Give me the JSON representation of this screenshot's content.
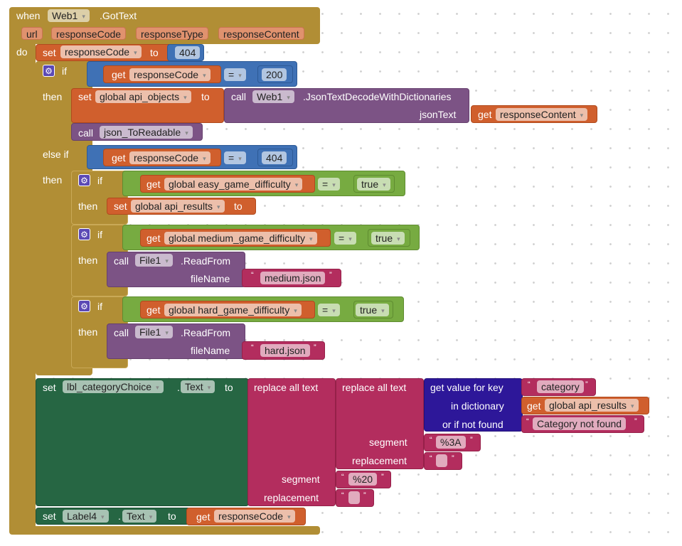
{
  "event": {
    "when": "when",
    "component": "Web1",
    "event_name": ".GotText",
    "params": [
      "url",
      "responseCode",
      "responseType",
      "responseContent"
    ],
    "do": "do"
  },
  "set1": {
    "set": "set",
    "var": "responseCode",
    "to": "to",
    "value": "404"
  },
  "if_outer": {
    "if": "if",
    "then": "then",
    "else_if": "else if",
    "then2": "then"
  },
  "cmp1": {
    "get": "get",
    "var": "responseCode",
    "op": "=",
    "value": "200"
  },
  "set_objects": {
    "set": "set",
    "var": "global api_objects",
    "to": "to"
  },
  "call_decode": {
    "call": "call",
    "component": "Web1",
    "method": ".JsonTextDecodeWithDictionaries",
    "arg": "jsonText",
    "get": "get",
    "get_var": "responseContent"
  },
  "call_proc": {
    "call": "call",
    "name": "json_ToReadable"
  },
  "cmp2": {
    "get": "get",
    "var": "responseCode",
    "op": "=",
    "value": "404"
  },
  "if1": {
    "if": "if",
    "then": "then",
    "get": "get",
    "var": "global easy_game_difficulty",
    "op": "=",
    "value": "true",
    "set": "set",
    "set_var": "global api_results",
    "to": "to"
  },
  "if2": {
    "if": "if",
    "then": "then",
    "get": "get",
    "var": "global medium_game_difficulty",
    "op": "=",
    "value": "true",
    "call": "call",
    "component": "File1",
    "method": ".ReadFrom",
    "arg": "fileName",
    "file": "medium.json"
  },
  "if3": {
    "if": "if",
    "then": "then",
    "get": "get",
    "var": "global hard_game_difficulty",
    "op": "=",
    "value": "true",
    "call": "call",
    "component": "File1",
    "method": ".ReadFrom",
    "arg": "fileName",
    "file": "hard.json"
  },
  "set_lbl": {
    "set": "set",
    "component": "lbl_categoryChoice",
    "dot": ".",
    "prop": "Text",
    "to": "to"
  },
  "replace_outer": {
    "label": "replace all text",
    "segment": "segment",
    "replacement": "replacement",
    "segment_value": "%20",
    "replacement_value": ""
  },
  "replace_inner": {
    "label": "replace all text",
    "segment": "segment",
    "replacement": "replacement",
    "segment_value": "%3A",
    "replacement_value": ""
  },
  "dict": {
    "label": "get value for key",
    "in": "in dictionary",
    "notfound": "or if not found",
    "key": "category",
    "get": "get",
    "get_var": "global api_results",
    "default": "Category not found"
  },
  "set_label4": {
    "set": "set",
    "component": "Label4",
    "dot": ".",
    "prop": "Text",
    "to": "to",
    "get": "get",
    "get_var": "responseCode"
  },
  "quotes": {
    "open": "“",
    "close": "”"
  },
  "icons": {
    "gear": "⚙",
    "dropdown": "▾"
  }
}
